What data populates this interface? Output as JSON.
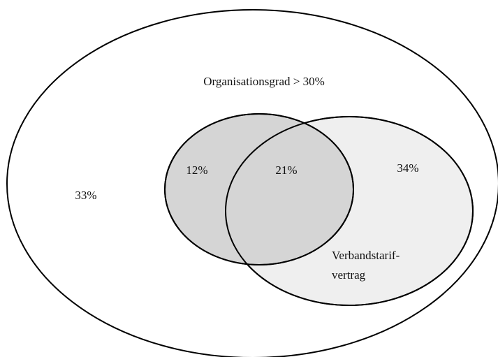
{
  "diagram": {
    "sets": [
      {
        "label": "Organisationsgrad > 30%"
      },
      {
        "label_lines": [
          "Verbandstarif-",
          "vertrag"
        ]
      }
    ],
    "regions": [
      {
        "label": "33%"
      },
      {
        "label": "12%"
      },
      {
        "label": "21%"
      },
      {
        "label": "34%"
      }
    ]
  }
}
